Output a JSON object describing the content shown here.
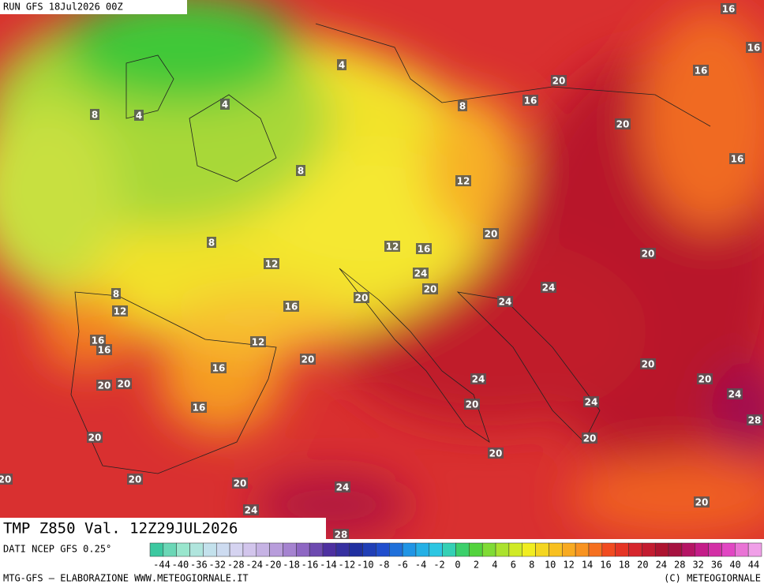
{
  "header": {
    "run": "RUN GFS 18Jul2026 00Z"
  },
  "map": {
    "contour_labels": [
      16,
      16,
      16,
      20,
      16,
      8,
      4,
      4,
      4,
      8,
      20,
      16,
      8,
      12,
      20,
      8,
      12,
      16,
      20,
      12,
      24,
      20,
      24,
      8,
      20,
      24,
      12,
      16,
      16,
      16,
      12,
      20,
      20,
      16,
      20,
      20,
      20,
      24,
      24,
      24,
      16,
      20,
      28,
      20,
      20,
      20,
      20,
      20,
      20,
      24,
      24,
      20,
      28
    ]
  },
  "footer": {
    "title": "TMP Z850 Val. 12Z29JUL2026",
    "source": "DATI NCEP GFS 0.25°",
    "scale_labels": [
      -44,
      -40,
      -36,
      -32,
      -28,
      -24,
      -20,
      -18,
      -16,
      -14,
      -12,
      -10,
      -8,
      -6,
      -4,
      -2,
      0,
      2,
      4,
      6,
      8,
      10,
      12,
      14,
      16,
      18,
      20,
      24,
      28,
      32,
      36,
      40,
      44
    ],
    "credit": "MTG-GFS — ELABORAZIONE WWW.METEOGIORNALE.IT",
    "copyright": "(C) METEOGIORNALE"
  }
}
